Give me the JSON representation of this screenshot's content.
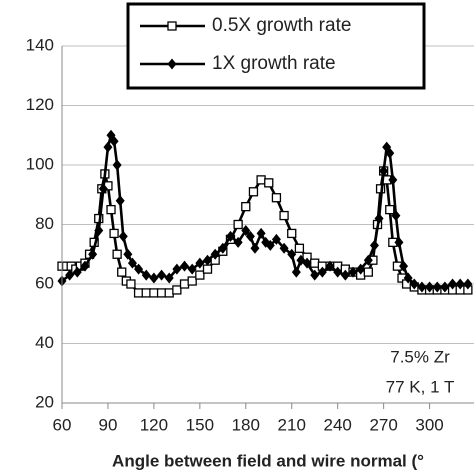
{
  "chart_data": {
    "type": "line",
    "xlabel": "Angle between field and wire normal (°",
    "annotations": [
      "7.5% Zr",
      "77 K, 1 T"
    ],
    "xlim": [
      60,
      329
    ],
    "xticks": [
      60,
      90,
      120,
      150,
      180,
      210,
      240,
      270,
      300
    ],
    "ylim": [
      20,
      140
    ],
    "yticks": [
      20,
      40,
      60,
      80,
      100,
      120,
      140
    ],
    "grid": true,
    "legend": "top",
    "series": [
      {
        "name": "0.5X growth rate",
        "color": "#000000",
        "marker": "open-square",
        "x": [
          60,
          63,
          66,
          69,
          72,
          75,
          78,
          81,
          84,
          86,
          88,
          90,
          92,
          94,
          96,
          99,
          102,
          105,
          110,
          115,
          120,
          125,
          130,
          135,
          140,
          145,
          150,
          155,
          160,
          165,
          170,
          175,
          180,
          185,
          190,
          195,
          200,
          205,
          210,
          215,
          220,
          225,
          230,
          235,
          240,
          245,
          250,
          255,
          260,
          263,
          266,
          268,
          270,
          272,
          274,
          276,
          279,
          282,
          285,
          290,
          295,
          300,
          305,
          310,
          315,
          320,
          325
        ],
        "values": [
          66,
          66,
          66,
          65,
          66,
          67,
          70,
          74,
          82,
          92,
          97,
          93,
          85,
          77,
          70,
          64,
          61,
          60,
          57,
          57,
          57,
          57,
          57,
          58,
          60,
          61,
          63,
          65,
          68,
          71,
          75,
          80,
          86,
          91,
          95,
          94,
          89,
          83,
          77,
          72,
          69,
          67,
          66,
          66,
          66,
          65,
          64,
          63,
          64,
          68,
          80,
          92,
          98,
          95,
          85,
          74,
          66,
          62,
          60,
          59,
          58,
          58,
          58,
          58,
          58,
          58,
          58
        ]
      },
      {
        "name": "1X growth rate",
        "color": "#000000",
        "marker": "filled-diamond",
        "x": [
          60,
          65,
          70,
          75,
          80,
          84,
          87,
          90,
          92,
          94,
          96,
          98,
          100,
          103,
          106,
          110,
          115,
          120,
          125,
          130,
          135,
          140,
          145,
          150,
          155,
          160,
          165,
          170,
          175,
          180,
          183,
          186,
          190,
          193,
          196,
          200,
          205,
          210,
          213,
          216,
          220,
          225,
          230,
          235,
          240,
          245,
          250,
          255,
          260,
          264,
          267,
          270,
          272,
          274,
          276,
          278,
          280,
          283,
          286,
          290,
          295,
          300,
          305,
          310,
          315,
          320,
          325
        ],
        "values": [
          61,
          63,
          64,
          66,
          70,
          78,
          92,
          106,
          110,
          108,
          100,
          88,
          76,
          70,
          67,
          65,
          63,
          62,
          63,
          62,
          65,
          66,
          65,
          67,
          68,
          70,
          72,
          76,
          74,
          78,
          76,
          72,
          77,
          74,
          73,
          75,
          72,
          70,
          64,
          68,
          67,
          63,
          64,
          66,
          64,
          63,
          64,
          65,
          68,
          73,
          82,
          98,
          106,
          104,
          95,
          83,
          74,
          66,
          62,
          60,
          59,
          59,
          59,
          59,
          60,
          60,
          60
        ]
      }
    ]
  }
}
